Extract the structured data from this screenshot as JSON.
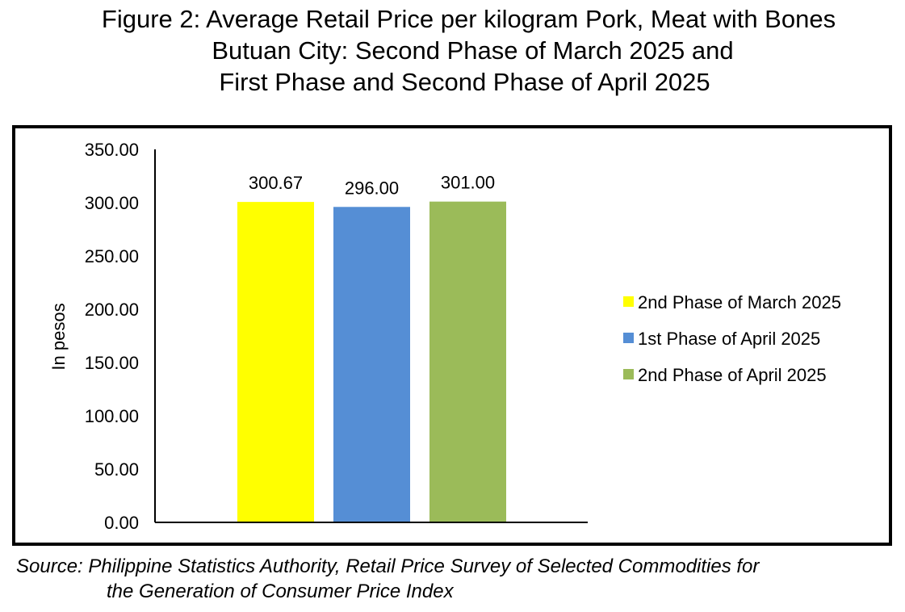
{
  "title": {
    "line1": "Figure 2: Average Retail Price per kilogram Pork, Meat with Bones",
    "line2": "Butuan City: Second Phase of March 2025 and",
    "line3": "First Phase and Second Phase of April 2025"
  },
  "source": {
    "line1": "Source: Philippine Statistics Authority, Retail Price Survey of Selected Commodities for",
    "line2": "the Generation of Consumer Price Index"
  },
  "chart_data": {
    "type": "bar",
    "categories": [
      "2nd Phase of March 2025",
      "1st Phase of April 2025",
      "2nd Phase of April 2025"
    ],
    "values": [
      300.67,
      296.0,
      301.0
    ],
    "value_labels": [
      "300.67",
      "296.00",
      "301.00"
    ],
    "colors": [
      "#FFFF00",
      "#558ED5",
      "#9BBB59"
    ],
    "ylabel": "In pesos",
    "ylim": [
      0,
      350
    ],
    "yticks": [
      "0.00",
      "50.00",
      "100.00",
      "150.00",
      "200.00",
      "250.00",
      "300.00",
      "350.00"
    ],
    "legend": {
      "position": "right",
      "entries": [
        "2nd Phase of March 2025",
        "1st Phase of April 2025",
        "2nd Phase of April 2025"
      ]
    },
    "grid": false
  }
}
